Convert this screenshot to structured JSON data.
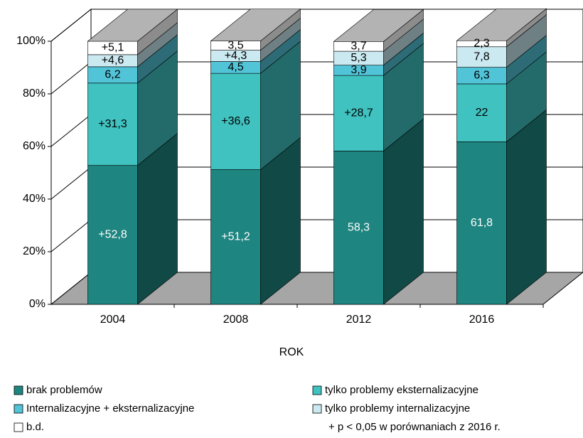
{
  "chart_data": {
    "type": "bar3d-stacked",
    "x_label": "ROK",
    "categories": [
      "2004",
      "2008",
      "2012",
      "2016"
    ],
    "series": [
      {
        "name": "brak problemów",
        "color": "#1f8580",
        "values": [
          52.8,
          51.2,
          58.3,
          61.8
        ],
        "value_labels": [
          "+52,8",
          "+51,2",
          "58,3",
          "61,8"
        ]
      },
      {
        "name": "tylko problemy eksternalizacyjne",
        "color": "#40c2c0",
        "values": [
          31.3,
          36.6,
          28.7,
          22
        ],
        "value_labels": [
          "+31,3",
          "+36,6",
          "+28,7",
          "22"
        ]
      },
      {
        "name": "Internalizacyjne + eksternalizacyjne",
        "color": "#52c4d8",
        "values": [
          6.2,
          4.5,
          3.9,
          6.3
        ],
        "value_labels": [
          "6,2",
          "4,5",
          "3,9",
          "6,3"
        ]
      },
      {
        "name": "tylko problemy internalizacyjne",
        "color": "#cae9f0",
        "values": [
          4.6,
          4.3,
          5.3,
          7.8
        ],
        "value_labels": [
          "+4,6",
          "+4,3",
          "5,3",
          "7,8"
        ]
      },
      {
        "name": "b.d.",
        "color": "#ffffff",
        "values": [
          5.1,
          3.5,
          3.7,
          2.3
        ],
        "value_labels": [
          "+5,1",
          "3,5",
          "3,7",
          "2,3"
        ]
      }
    ],
    "ylim": [
      0,
      100
    ],
    "yticks": [
      {
        "value": 0,
        "label": "0%"
      },
      {
        "value": 20,
        "label": "20%"
      },
      {
        "value": 40,
        "label": "40%"
      },
      {
        "value": 60,
        "label": "60%"
      },
      {
        "value": 80,
        "label": "80%"
      },
      {
        "value": 100,
        "label": "100%"
      }
    ],
    "grid": true,
    "note": "+   p < 0,05 w  porównaniach z 2016 r."
  }
}
